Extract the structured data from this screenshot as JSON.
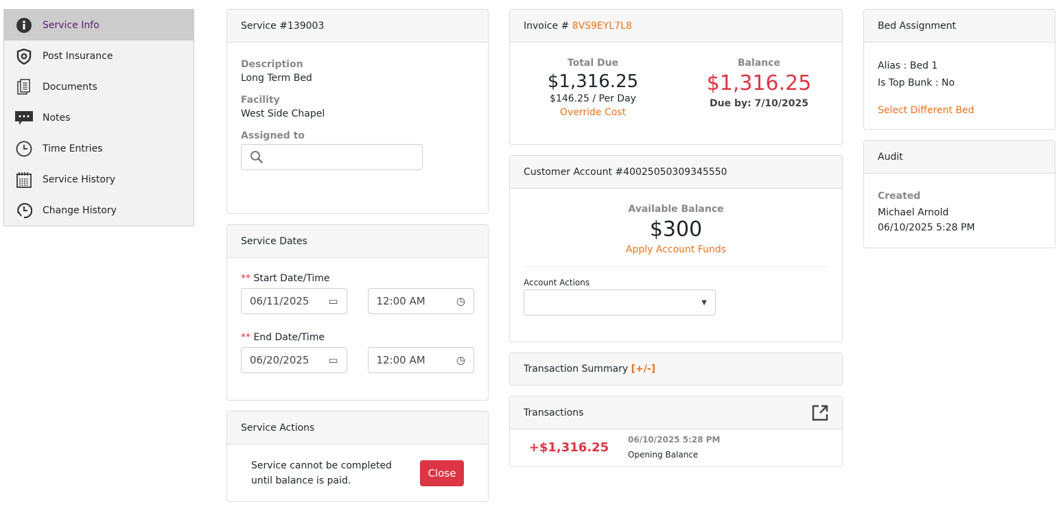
{
  "sidebar": {
    "items": [
      {
        "label": "Service Info",
        "icon": "info-icon",
        "active": true
      },
      {
        "label": "Post Insurance",
        "icon": "shield-plus-icon"
      },
      {
        "label": "Documents",
        "icon": "documents-icon"
      },
      {
        "label": "Notes",
        "icon": "notes-icon"
      },
      {
        "label": "Time Entries",
        "icon": "clock-icon"
      },
      {
        "label": "Service History",
        "icon": "calendar-icon"
      },
      {
        "label": "Change History",
        "icon": "history-icon"
      }
    ]
  },
  "service": {
    "title": "Service #139003",
    "description_label": "Description",
    "description": "Long Term Bed",
    "facility_label": "Facility",
    "facility": "West Side Chapel",
    "assigned_label": "Assigned to",
    "assigned_value": ""
  },
  "dates": {
    "title": "Service Dates",
    "required_mark": "**",
    "start_label": "Start Date/Time",
    "start_date": "06/11/2025",
    "start_time": "12:00 AM",
    "end_label": "End Date/Time",
    "end_date": "06/20/2025",
    "end_time": "12:00 AM"
  },
  "actions": {
    "title": "Service Actions",
    "message_line1": "Service cannot be completed",
    "message_line2": "until balance is paid.",
    "close_label": "Close"
  },
  "invoice": {
    "title_prefix": "Invoice #",
    "number": "8VS9EYL7L8",
    "total_label": "Total Due",
    "total": "$1,316.25",
    "per_day": "$146.25 / Per Day",
    "override": "Override Cost",
    "balance_label": "Balance",
    "balance": "$1,316.25",
    "due_by": "Due by: 7/10/2025"
  },
  "account": {
    "title": "Customer Account #40025050309345550",
    "available_label": "Available Balance",
    "available": "$300",
    "apply": "Apply Account Funds",
    "actions_label": "Account Actions",
    "actions_value": ""
  },
  "summary": {
    "title": "Transaction Summary",
    "toggle": "[+/-]"
  },
  "transactions": {
    "title": "Transactions",
    "items": [
      {
        "amount": "+$1,316.25",
        "date": "06/10/2025 5:28 PM",
        "desc": "Opening Balance"
      }
    ]
  },
  "bed": {
    "title": "Bed Assignment",
    "alias_label": "Alias :",
    "alias": "Bed 1",
    "top_label": "Is Top Bunk :",
    "top": "No",
    "select": "Select Different Bed"
  },
  "audit": {
    "title": "Audit",
    "created_label": "Created",
    "created_by": "Michael Arnold",
    "created_at": "06/10/2025 5:28 PM"
  },
  "colors": {
    "accent": "#e8711c",
    "danger": "#dc3545",
    "active_text": "#5a1d74"
  }
}
